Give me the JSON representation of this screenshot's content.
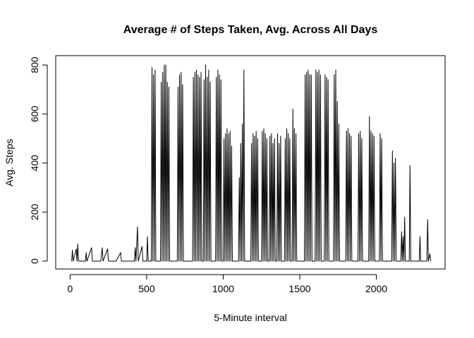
{
  "chart_data": {
    "type": "line",
    "title": "Average # of Steps Taken, Avg. Across All Days",
    "x_label": "5-Minute interval",
    "y_label": "Avg. Steps",
    "color": "#000000",
    "xlim": [
      -94,
      2449
    ],
    "ylim": [
      -32,
      838
    ],
    "xticks": [
      0,
      500,
      1000,
      1500,
      2000
    ],
    "yticks": [
      0,
      200,
      400,
      600,
      800
    ],
    "x": [
      10,
      15,
      20,
      40,
      45,
      50,
      55,
      100,
      105,
      110,
      140,
      145,
      200,
      210,
      215,
      245,
      250,
      300,
      330,
      335,
      420,
      425,
      430,
      440,
      445,
      470,
      475,
      500,
      505,
      510,
      530,
      535,
      540,
      545,
      550,
      555,
      560,
      590,
      595,
      600,
      605,
      610,
      615,
      620,
      625,
      630,
      635,
      640,
      645,
      650,
      700,
      705,
      710,
      715,
      720,
      725,
      730,
      735,
      740,
      800,
      805,
      810,
      815,
      820,
      825,
      830,
      835,
      840,
      845,
      850,
      855,
      860,
      870,
      875,
      880,
      885,
      890,
      895,
      900,
      905,
      910,
      915,
      920,
      950,
      955,
      960,
      965,
      970,
      975,
      980,
      985,
      990,
      1000,
      1005,
      1010,
      1015,
      1020,
      1025,
      1030,
      1035,
      1040,
      1045,
      1050,
      1055,
      1060,
      1100,
      1105,
      1110,
      1115,
      1120,
      1125,
      1130,
      1135,
      1140,
      1180,
      1185,
      1190,
      1195,
      1200,
      1205,
      1210,
      1215,
      1220,
      1225,
      1230,
      1250,
      1255,
      1260,
      1265,
      1270,
      1275,
      1280,
      1285,
      1290,
      1300,
      1305,
      1310,
      1315,
      1320,
      1325,
      1330,
      1335,
      1340,
      1350,
      1355,
      1360,
      1365,
      1370,
      1375,
      1380,
      1400,
      1405,
      1410,
      1415,
      1420,
      1425,
      1430,
      1435,
      1440,
      1450,
      1455,
      1460,
      1465,
      1470,
      1475,
      1480,
      1530,
      1535,
      1540,
      1545,
      1550,
      1555,
      1560,
      1565,
      1570,
      1575,
      1580,
      1600,
      1605,
      1610,
      1615,
      1620,
      1625,
      1630,
      1635,
      1640,
      1660,
      1665,
      1670,
      1675,
      1680,
      1685,
      1690,
      1720,
      1725,
      1730,
      1735,
      1740,
      1745,
      1750,
      1755,
      1760,
      1800,
      1805,
      1810,
      1815,
      1820,
      1825,
      1830,
      1835,
      1840,
      1880,
      1885,
      1890,
      1895,
      1900,
      1905,
      1910,
      1950,
      1955,
      1960,
      1965,
      1970,
      1975,
      1980,
      1985,
      1990,
      2020,
      2025,
      2030,
      2035,
      2040,
      2100,
      2105,
      2110,
      2115,
      2120,
      2125,
      2130,
      2160,
      2165,
      2170,
      2175,
      2180,
      2185,
      2190,
      2215,
      2220,
      2225,
      2280,
      2285,
      2290,
      2330,
      2335,
      2340,
      2350,
      2355
    ],
    "values": [
      0,
      45,
      0,
      50,
      0,
      70,
      0,
      0,
      35,
      0,
      55,
      0,
      0,
      55,
      0,
      50,
      0,
      0,
      35,
      0,
      0,
      55,
      0,
      140,
      0,
      60,
      0,
      0,
      100,
      0,
      0,
      790,
      0,
      760,
      0,
      780,
      0,
      0,
      730,
      0,
      770,
      0,
      800,
      0,
      800,
      0,
      730,
      0,
      710,
      0,
      0,
      710,
      0,
      760,
      0,
      770,
      0,
      720,
      0,
      0,
      750,
      0,
      770,
      0,
      780,
      0,
      760,
      0,
      750,
      0,
      770,
      0,
      0,
      740,
      0,
      800,
      0,
      750,
      0,
      780,
      0,
      730,
      0,
      0,
      750,
      0,
      780,
      0,
      760,
      0,
      740,
      0,
      0,
      500,
      0,
      520,
      0,
      540,
      0,
      520,
      0,
      530,
      0,
      470,
      0,
      0,
      340,
      0,
      480,
      0,
      560,
      0,
      780,
      0,
      0,
      480,
      0,
      520,
      0,
      510,
      0,
      530,
      0,
      500,
      0,
      0,
      530,
      0,
      540,
      0,
      520,
      0,
      500,
      0,
      0,
      510,
      0,
      520,
      0,
      480,
      0,
      500,
      0,
      0,
      520,
      0,
      480,
      0,
      510,
      0,
      0,
      500,
      0,
      540,
      0,
      520,
      0,
      500,
      0,
      0,
      620,
      0,
      540,
      0,
      520,
      0,
      0,
      760,
      0,
      770,
      0,
      780,
      0,
      760,
      0,
      760,
      0,
      0,
      780,
      0,
      770,
      0,
      780,
      0,
      760,
      0,
      0,
      760,
      0,
      750,
      0,
      740,
      0,
      0,
      760,
      0,
      780,
      0,
      650,
      0,
      560,
      0,
      0,
      530,
      0,
      540,
      0,
      520,
      0,
      510,
      0,
      0,
      520,
      0,
      530,
      0,
      500,
      0,
      0,
      590,
      0,
      530,
      0,
      520,
      0,
      510,
      0,
      0,
      520,
      0,
      500,
      0,
      0,
      450,
      0,
      400,
      0,
      420,
      0,
      0,
      120,
      0,
      100,
      0,
      180,
      0,
      0,
      390,
      0,
      0,
      100,
      0,
      0,
      170,
      0,
      30,
      0
    ]
  }
}
